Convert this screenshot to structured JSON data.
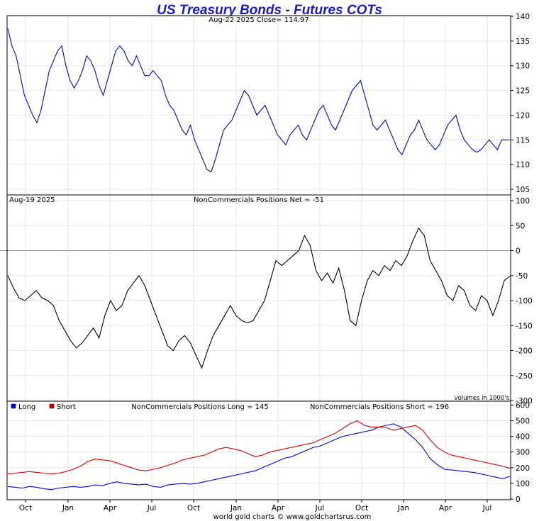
{
  "chart_data": {
    "title": "US Treasury Bonds - Futures COTs",
    "footer": "world gold charts © www.goldchartsrus.com",
    "x_tick_labels": [
      "Oct",
      "Jan",
      "Apr",
      "Jul",
      "Oct",
      "Jan",
      "Apr",
      "Jul",
      "Oct",
      "Jan",
      "Apr",
      "Jul"
    ],
    "panels": [
      {
        "type": "line",
        "left_label": "",
        "center_label": "Aug-22  2025   Close= 114.97",
        "ylim": [
          104,
          140
        ],
        "y_ticks": [
          105,
          110,
          115,
          120,
          125,
          130,
          135,
          140
        ],
        "zero_line": null,
        "series": [
          {
            "color": "#0000ee",
            "values": [
              137.5,
              134,
              132,
              128,
              124,
              122,
              120,
              118.5,
              121,
              125,
              129,
              131,
              133,
              134,
              130,
              127,
              125.5,
              127,
              129,
              132,
              131,
              129,
              126,
              124,
              127,
              130,
              133,
              134,
              133,
              131,
              130,
              132,
              130,
              128,
              128,
              129,
              128,
              127,
              124,
              122,
              121,
              119,
              117,
              116,
              118,
              115,
              113,
              111,
              109,
              108.5,
              111,
              114,
              117,
              118,
              119,
              121,
              123,
              125,
              124,
              122,
              120,
              121,
              122,
              120,
              118,
              116,
              115,
              114,
              116,
              117,
              118,
              116,
              115,
              117,
              119,
              121,
              122,
              120,
              118,
              117,
              119,
              121,
              123,
              125,
              126,
              127,
              124,
              121,
              118,
              117,
              118,
              119,
              117,
              115,
              113,
              112,
              114,
              116,
              117,
              119,
              117,
              115,
              114,
              113,
              114,
              116,
              118,
              119,
              120,
              117,
              115,
              114,
              113,
              112.5,
              113,
              114,
              115,
              114,
              113,
              115,
              115,
              114.97
            ]
          }
        ]
      },
      {
        "type": "line",
        "left_label": "Aug-19  2025",
        "center_label": "NonCommercials Positions Net = -51",
        "ylim": [
          -300,
          110
        ],
        "y_ticks": [
          -300,
          -250,
          -200,
          -150,
          -100,
          -50,
          0,
          50,
          100
        ],
        "zero_line": 0,
        "series": [
          {
            "color": "#000000",
            "values": [
              -50,
              -75,
              -95,
              -100,
              -90,
              -80,
              -95,
              -100,
              -110,
              -140,
              -160,
              -180,
              -195,
              -185,
              -170,
              -155,
              -175,
              -130,
              -100,
              -120,
              -110,
              -80,
              -65,
              -50,
              -70,
              -100,
              -130,
              -160,
              -190,
              -200,
              -180,
              -170,
              -185,
              -210,
              -235,
              -200,
              -170,
              -150,
              -130,
              -110,
              -130,
              -140,
              -145,
              -140,
              -120,
              -100,
              -60,
              -20,
              -30,
              -20,
              -10,
              0,
              30,
              10,
              -40,
              -60,
              -45,
              -65,
              -35,
              -80,
              -140,
              -150,
              -100,
              -60,
              -40,
              -50,
              -30,
              -40,
              -20,
              -30,
              -10,
              20,
              45,
              30,
              -20,
              -40,
              -60,
              -90,
              -100,
              -70,
              -80,
              -110,
              -120,
              -90,
              -100,
              -130,
              -100,
              -60,
              -51
            ]
          }
        ]
      },
      {
        "type": "line",
        "left_label": "",
        "center_label": "NonCommercials Positions Long = 145",
        "center_label_2": "NonCommercials Positions Short = 196",
        "corner_note": "volumes in 1000's",
        "ylim": [
          0,
          620
        ],
        "y_ticks": [
          0,
          100,
          200,
          300,
          400,
          500,
          600
        ],
        "zero_line": null,
        "legend": [
          {
            "label": "Long",
            "color": "#0000ee"
          },
          {
            "label": "Short",
            "color": "#dd0000"
          }
        ],
        "series": [
          {
            "name": "Long",
            "color": "#0000ee",
            "values": [
              80,
              75,
              70,
              80,
              75,
              65,
              60,
              70,
              75,
              80,
              75,
              80,
              90,
              85,
              100,
              110,
              100,
              95,
              90,
              95,
              80,
              75,
              90,
              95,
              100,
              95,
              100,
              110,
              120,
              130,
              140,
              150,
              160,
              170,
              180,
              200,
              220,
              240,
              260,
              270,
              290,
              310,
              330,
              340,
              360,
              380,
              400,
              410,
              420,
              430,
              440,
              460,
              470,
              480,
              460,
              420,
              380,
              330,
              260,
              220,
              190,
              185,
              180,
              175,
              170,
              160,
              150,
              140,
              130,
              145
            ]
          },
          {
            "name": "Short",
            "color": "#dd0000",
            "values": [
              160,
              165,
              170,
              175,
              170,
              165,
              160,
              165,
              175,
              190,
              210,
              240,
              255,
              250,
              245,
              230,
              215,
              200,
              185,
              180,
              190,
              200,
              215,
              230,
              250,
              260,
              270,
              280,
              300,
              320,
              330,
              320,
              310,
              290,
              270,
              280,
              300,
              310,
              320,
              330,
              340,
              350,
              360,
              380,
              400,
              420,
              450,
              480,
              500,
              470,
              460,
              460,
              455,
              440,
              450,
              460,
              470,
              440,
              380,
              330,
              300,
              280,
              270,
              260,
              250,
              240,
              230,
              220,
              210,
              196
            ]
          }
        ]
      }
    ]
  }
}
